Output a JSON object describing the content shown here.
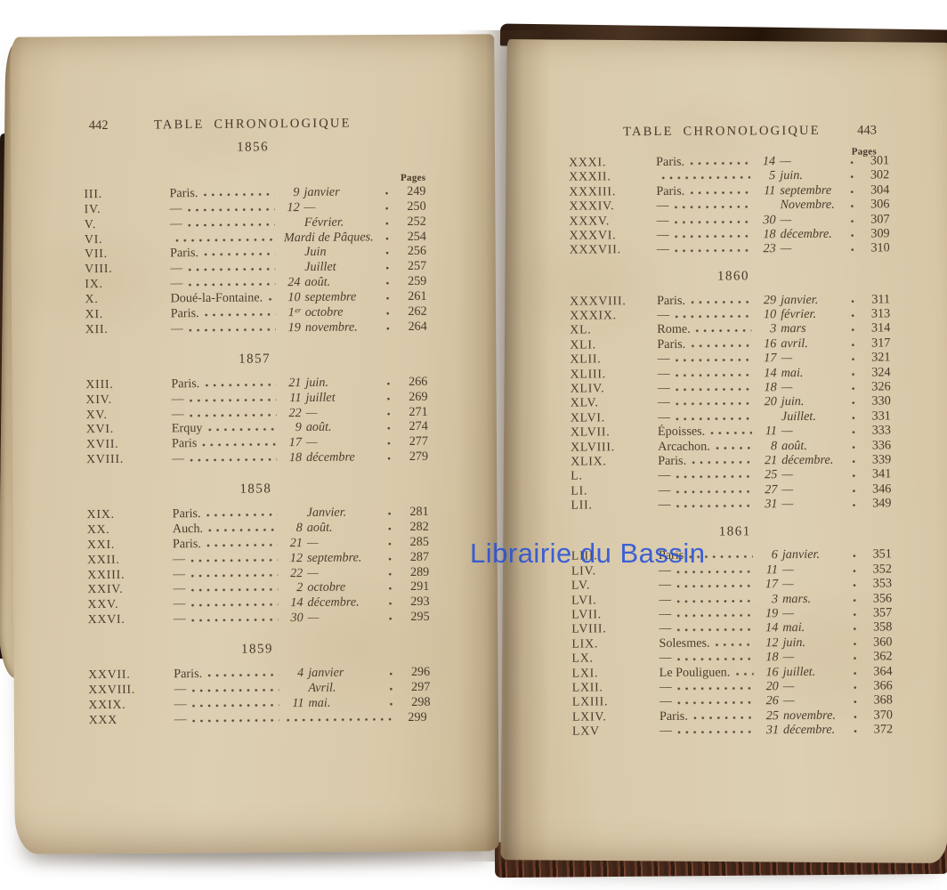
{
  "watermark": {
    "text": "Librairie du Bassin",
    "color": "#2550d8"
  },
  "colors": {
    "paper": "#dccdb0",
    "ink": "#4a3d2d",
    "cover_brown": "#2e1b10",
    "watermark_blue": "#2550d8"
  },
  "left_page": {
    "page_number": "442",
    "title": "TABLE CHRONOLOGIQUE",
    "pages_label": "Pages",
    "sections": [
      {
        "year": "1856",
        "rows": [
          {
            "num": "III.",
            "place": "Paris.",
            "date": "9 janvier",
            "page": "249"
          },
          {
            "num": "IV.",
            "place": "—",
            "date": "12 —",
            "page": "250"
          },
          {
            "num": "V.",
            "place": "—",
            "date": "Février.",
            "page": "252"
          },
          {
            "num": "VI.",
            "place": "",
            "date": "Mardi de Pâques.",
            "page": "254"
          },
          {
            "num": "VII.",
            "place": "Paris.",
            "date": "Juin",
            "page": "256"
          },
          {
            "num": "VIII.",
            "place": "—",
            "date": "Juillet",
            "page": "257"
          },
          {
            "num": "IX.",
            "place": "—",
            "date": "24 août.",
            "page": "259"
          },
          {
            "num": "X.",
            "place": "Doué-la-Fontaine.",
            "date": "10 septembre",
            "page": "261"
          },
          {
            "num": "XI.",
            "place": "Paris.",
            "date": "1ᵉʳ octobre",
            "page": "262"
          },
          {
            "num": "XII.",
            "place": "—",
            "date": "19 novembre.",
            "page": "264"
          }
        ]
      },
      {
        "year": "1857",
        "rows": [
          {
            "num": "XIII.",
            "place": "Paris.",
            "date": "21 juin.",
            "page": "266"
          },
          {
            "num": "XIV.",
            "place": "—",
            "date": "11 juillet",
            "page": "269"
          },
          {
            "num": "XV.",
            "place": "—",
            "date": "22 —",
            "page": "271"
          },
          {
            "num": "XVI.",
            "place": "Erquy",
            "date": "9 août.",
            "page": "274"
          },
          {
            "num": "XVII.",
            "place": "Paris",
            "date": "17 —",
            "page": "277"
          },
          {
            "num": "XVIII.",
            "place": "—",
            "date": "18 décembre",
            "page": "279"
          }
        ]
      },
      {
        "year": "1858",
        "rows": [
          {
            "num": "XIX.",
            "place": "Paris.",
            "date": "Janvier.",
            "page": "281"
          },
          {
            "num": "XX.",
            "place": "Auch.",
            "date": "8 août.",
            "page": "282"
          },
          {
            "num": "XXI.",
            "place": "Paris.",
            "date": "21 —",
            "page": "285"
          },
          {
            "num": "XXII.",
            "place": "—",
            "date": "12 septembre.",
            "page": "287"
          },
          {
            "num": "XXIII.",
            "place": "—",
            "date": "22 —",
            "page": "289"
          },
          {
            "num": "XXIV.",
            "place": "—",
            "date": "2 octobre",
            "page": "291"
          },
          {
            "num": "XXV.",
            "place": "—",
            "date": "14 décembre.",
            "page": "293"
          },
          {
            "num": "XXVI.",
            "place": "—",
            "date": "30 —",
            "page": "295"
          }
        ]
      },
      {
        "year": "1859",
        "rows": [
          {
            "num": "XXVII.",
            "place": "Paris.",
            "date": "4 janvier",
            "page": "296"
          },
          {
            "num": "XXVIII.",
            "place": "—",
            "date": "Avril.",
            "page": "297"
          },
          {
            "num": "XXIX.",
            "place": "—",
            "date": "11 mai.",
            "page": "298"
          },
          {
            "num": "XXX",
            "place": "—",
            "date": "",
            "page": "299"
          }
        ]
      }
    ]
  },
  "right_page": {
    "page_number": "443",
    "title": "TABLE CHRONOLOGIQUE",
    "pages_label": "Pages",
    "sections": [
      {
        "year": "",
        "rows": [
          {
            "num": "XXXI.",
            "place": "Paris.",
            "date": "14 —",
            "page": "301"
          },
          {
            "num": "XXXII.",
            "place": "",
            "date": "5 juin.",
            "page": "302"
          },
          {
            "num": "XXXIII.",
            "place": "Paris.",
            "date": "11 septembre",
            "page": "304"
          },
          {
            "num": "XXXIV.",
            "place": "—",
            "date": "Novembre.",
            "page": "306"
          },
          {
            "num": "XXXV.",
            "place": "—",
            "date": "30 —",
            "page": "307"
          },
          {
            "num": "XXXVI.",
            "place": "—",
            "date": "18 décembre.",
            "page": "309"
          },
          {
            "num": "XXXVII.",
            "place": "—",
            "date": "23 —",
            "page": "310"
          }
        ]
      },
      {
        "year": "1860",
        "rows": [
          {
            "num": "XXXVIII.",
            "place": "Paris.",
            "date": "29 janvier.",
            "page": "311"
          },
          {
            "num": "XXXIX.",
            "place": "—",
            "date": "10 février.",
            "page": "313"
          },
          {
            "num": "XL.",
            "place": "Rome.",
            "date": "3 mars",
            "page": "314"
          },
          {
            "num": "XLI.",
            "place": "Paris.",
            "date": "16 avril.",
            "page": "317"
          },
          {
            "num": "XLII.",
            "place": "—",
            "date": "17 —",
            "page": "321"
          },
          {
            "num": "XLIII.",
            "place": "—",
            "date": "14 mai.",
            "page": "324"
          },
          {
            "num": "XLIV.",
            "place": "—",
            "date": "18 —",
            "page": "326"
          },
          {
            "num": "XLV.",
            "place": "—",
            "date": "20 juin.",
            "page": "330"
          },
          {
            "num": "XLVI.",
            "place": "—",
            "date": "Juillet.",
            "page": "331"
          },
          {
            "num": "XLVII.",
            "place": "Époisses.",
            "date": "11 —",
            "page": "333"
          },
          {
            "num": "XLVIII.",
            "place": "Arcachon.",
            "date": "8 août.",
            "page": "336"
          },
          {
            "num": "XLIX.",
            "place": "Paris.",
            "date": "21 décembre.",
            "page": "339"
          },
          {
            "num": "L.",
            "place": "—",
            "date": "25 —",
            "page": "341"
          },
          {
            "num": "LI.",
            "place": "—",
            "date": "27 —",
            "page": "346"
          },
          {
            "num": "LII.",
            "place": "—",
            "date": "31 —",
            "page": "349"
          }
        ]
      },
      {
        "year": "1861",
        "rows": [
          {
            "num": "LIII.",
            "place": "Paris",
            "date": "6 janvier.",
            "page": "351"
          },
          {
            "num": "LIV.",
            "place": "—",
            "date": "11 —",
            "page": "352"
          },
          {
            "num": "LV.",
            "place": "—",
            "date": "17 —",
            "page": "353"
          },
          {
            "num": "LVI.",
            "place": "—",
            "date": "3 mars.",
            "page": "356"
          },
          {
            "num": "LVII.",
            "place": "—",
            "date": "19 —",
            "page": "357"
          },
          {
            "num": "LVIII.",
            "place": "—",
            "date": "14 mai.",
            "page": "358"
          },
          {
            "num": "LIX.",
            "place": "Solesmes.",
            "date": "12 juin.",
            "page": "360"
          },
          {
            "num": "LX.",
            "place": "—",
            "date": "18 —",
            "page": "362"
          },
          {
            "num": "LXI.",
            "place": "Le Pouliguen.",
            "date": "16 juillet.",
            "page": "364"
          },
          {
            "num": "LXII.",
            "place": "—",
            "date": "20 —",
            "page": "366"
          },
          {
            "num": "LXIII.",
            "place": "—",
            "date": "26 —",
            "page": "368"
          },
          {
            "num": "LXIV.",
            "place": "Paris.",
            "date": "25 novembre.",
            "page": "370"
          },
          {
            "num": "LXV",
            "place": "—",
            "date": "31 décembre.",
            "page": "372"
          }
        ]
      }
    ]
  }
}
